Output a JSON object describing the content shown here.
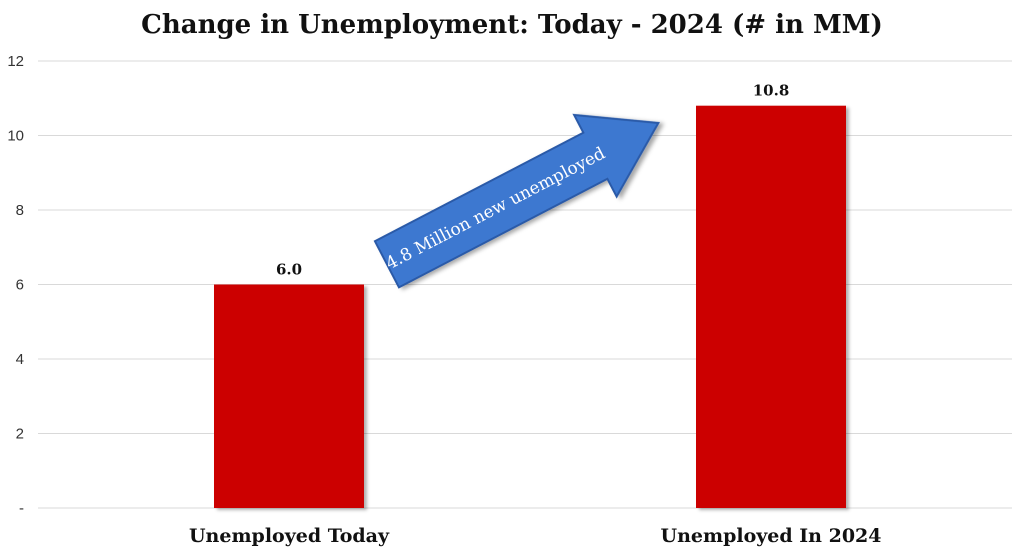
{
  "chart_data": {
    "type": "bar",
    "title": "Change in Unemployment: Today - 2024 (# in MM)",
    "categories": [
      "Unemployed Today",
      "Unemployed In 2024"
    ],
    "values": [
      6.0,
      10.8
    ],
    "value_labels": [
      "6.0",
      "10.8"
    ],
    "ylim": [
      0,
      12
    ],
    "yticks": [
      0,
      2,
      4,
      6,
      8,
      10,
      12
    ],
    "ytick_labels": [
      "-",
      "2",
      "4",
      "6",
      "8",
      "10",
      "12"
    ],
    "grid": true,
    "legend": "none",
    "annotation": {
      "text": "4.8 Million new unemployed",
      "shape": "arrow"
    },
    "colors": {
      "bar": "#cc0000",
      "arrow": "#3c78d0",
      "arrow_border": "#2a5aa8",
      "grid": "#d9d9d9"
    }
  }
}
